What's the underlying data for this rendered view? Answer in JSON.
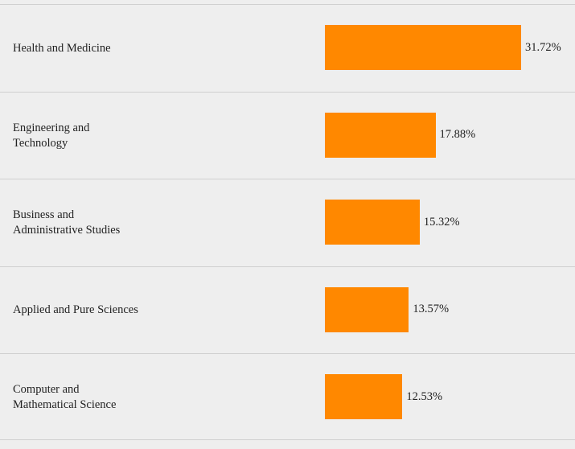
{
  "chart_data": {
    "type": "bar",
    "orientation": "horizontal",
    "categories": [
      "Health and Medicine",
      "Engineering and\nTechnology",
      "Business and\nAdministrative Studies",
      "Applied and Pure Sciences",
      "Computer and\nMathematical Science"
    ],
    "values": [
      31.72,
      17.88,
      15.32,
      13.57,
      12.53
    ],
    "value_labels": [
      "31.72%",
      "17.88%",
      "15.32%",
      "13.57%",
      "12.53%"
    ],
    "unit": "%",
    "bar_color": "#ff8800",
    "title": "",
    "xlabel": "",
    "ylabel": "",
    "xlim": [
      0,
      31.72
    ],
    "grid": false,
    "row_separators": true
  }
}
